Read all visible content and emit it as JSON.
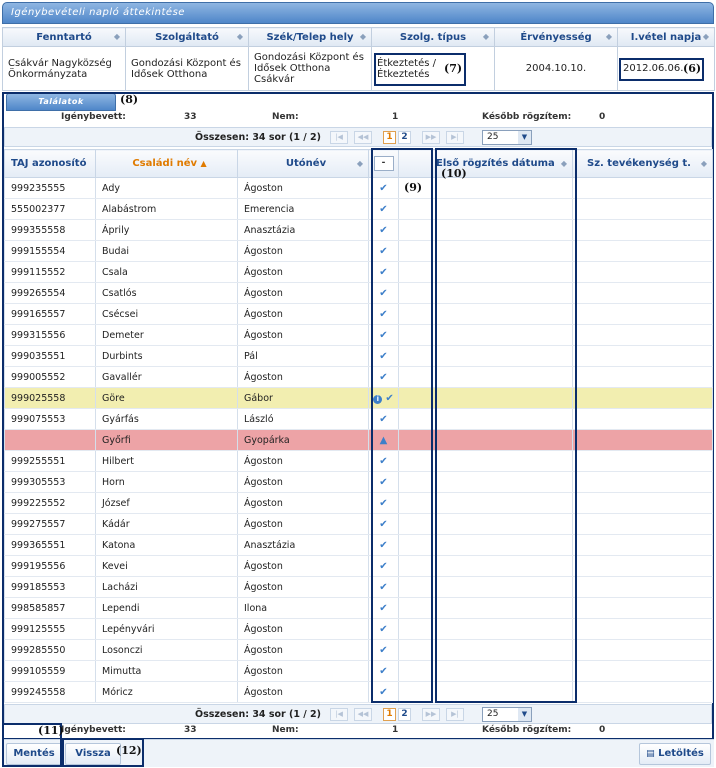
{
  "title": "Igénybevételi napló áttekintése",
  "header_table": {
    "columns": [
      "Fenntartó",
      "Szolgáltató",
      "Szék/Telep hely",
      "Szolg. típus",
      "Érvényesség",
      "I.vétel napja"
    ],
    "row": {
      "fenntarto": "Csákvár Nagyközség Önkormányzata",
      "szolgaltato": "Gondozási Központ és Idősek Otthona",
      "telephely": "Gondozási Központ és Idősek Otthona Csákvár",
      "szolg_tipus": "Étkeztetés / Étkeztetés",
      "ervenyesseg": "2004.10.10.",
      "ivetel_napja": "2012.06.06."
    }
  },
  "annotations": {
    "a6": "(6)",
    "a7": "(7)",
    "a8": "(8)",
    "a9": "(9)",
    "a10": "(10)",
    "a11": "(11)",
    "a12": "(12)"
  },
  "tab_label": "Találatok",
  "stats": {
    "igenybevett_label": "Igénybevett:",
    "igenybevett_value": "33",
    "nem_label": "Nem:",
    "nem_value": "1",
    "kesobb_label": "Később rögzítem:",
    "kesobb_value": "0"
  },
  "pager": {
    "summary": "Összesen: 34 sor (1 / 2)",
    "first": "|◀",
    "prev": "◀◀",
    "next": "▶▶",
    "last": "▶|",
    "pages": [
      "1",
      "2"
    ],
    "current_page": "1",
    "page_size": "25"
  },
  "grid": {
    "columns": [
      "TAJ azonosító",
      "Családi név",
      "Utónév",
      "-",
      "Első rögzítés dátuma",
      "Sz. tevékenység t."
    ],
    "sort_column": "Családi név",
    "rows": [
      {
        "taj": "999235555",
        "csaladi": "Ady",
        "uto": "Ágoston",
        "state": "ok"
      },
      {
        "taj": "555002377",
        "csaladi": "Alabástrom",
        "uto": "Emerencia",
        "state": "ok"
      },
      {
        "taj": "999355558",
        "csaladi": "Áprily",
        "uto": "Anasztázia",
        "state": "ok"
      },
      {
        "taj": "999155554",
        "csaladi": "Budai",
        "uto": "Ágoston",
        "state": "ok"
      },
      {
        "taj": "999115552",
        "csaladi": "Csala",
        "uto": "Ágoston",
        "state": "ok"
      },
      {
        "taj": "999265554",
        "csaladi": "Csatlós",
        "uto": "Ágoston",
        "state": "ok"
      },
      {
        "taj": "999165557",
        "csaladi": "Csécsei",
        "uto": "Ágoston",
        "state": "ok"
      },
      {
        "taj": "999315556",
        "csaladi": "Demeter",
        "uto": "Ágoston",
        "state": "ok"
      },
      {
        "taj": "999035551",
        "csaladi": "Durbints",
        "uto": "Pál",
        "state": "ok"
      },
      {
        "taj": "999005552",
        "csaladi": "Gavallér",
        "uto": "Ágoston",
        "state": "ok"
      },
      {
        "taj": "999025558",
        "csaladi": "Göre",
        "uto": "Gábor",
        "state": "info"
      },
      {
        "taj": "999075553",
        "csaladi": "Gyárfás",
        "uto": "László",
        "state": "ok"
      },
      {
        "taj": "",
        "csaladi": "Győrfi",
        "uto": "Gyopárka",
        "state": "warn"
      },
      {
        "taj": "999255551",
        "csaladi": "Hilbert",
        "uto": "Ágoston",
        "state": "ok"
      },
      {
        "taj": "999305553",
        "csaladi": "Horn",
        "uto": "Ágoston",
        "state": "ok"
      },
      {
        "taj": "999225552",
        "csaladi": "József",
        "uto": "Ágoston",
        "state": "ok"
      },
      {
        "taj": "999275557",
        "csaladi": "Kádár",
        "uto": "Ágoston",
        "state": "ok"
      },
      {
        "taj": "999365551",
        "csaladi": "Katona",
        "uto": "Anasztázia",
        "state": "ok"
      },
      {
        "taj": "999195556",
        "csaladi": "Kevei",
        "uto": "Ágoston",
        "state": "ok"
      },
      {
        "taj": "999185553",
        "csaladi": "Lacházi",
        "uto": "Ágoston",
        "state": "ok"
      },
      {
        "taj": "998585857",
        "csaladi": "Lependi",
        "uto": "Ilona",
        "state": "ok"
      },
      {
        "taj": "999125555",
        "csaladi": "Lepényvári",
        "uto": "Ágoston",
        "state": "ok"
      },
      {
        "taj": "999285550",
        "csaladi": "Losonczi",
        "uto": "Ágoston",
        "state": "ok"
      },
      {
        "taj": "999105559",
        "csaladi": "Mimutta",
        "uto": "Ágoston",
        "state": "ok"
      },
      {
        "taj": "999245558",
        "csaladi": "Móricz",
        "uto": "Ágoston",
        "state": "ok"
      }
    ]
  },
  "buttons": {
    "save": "Mentés",
    "back": "Vissza",
    "download": "Letöltés"
  },
  "icons": {
    "sort": "sort-icon",
    "check": "check-icon",
    "info": "info-icon",
    "warning": "warning-icon",
    "download": "download-icon",
    "dropdown": "chevron-down-icon"
  },
  "colors": {
    "header_blue": "#4f86c9",
    "selected_row": "#f2eeb0",
    "error_row": "#eda3a6",
    "accent_orange": "#e07b00",
    "annotation_box": "#0b2d6b"
  }
}
